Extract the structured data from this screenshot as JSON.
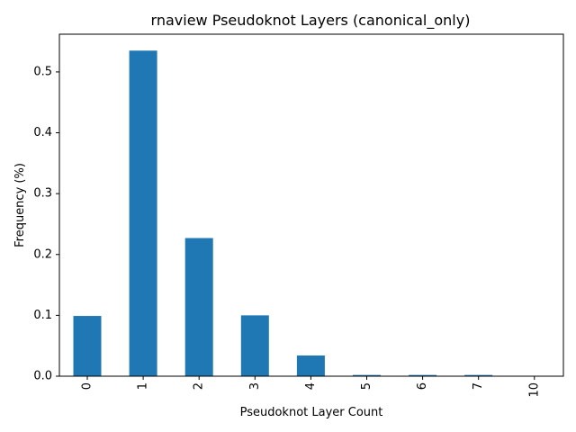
{
  "chart_data": {
    "type": "bar",
    "title": "rnaview Pseudoknot Layers (canonical_only)",
    "xlabel": "Pseudoknot Layer Count",
    "ylabel": "Frequency (%)",
    "categories": [
      "0",
      "1",
      "2",
      "3",
      "4",
      "5",
      "6",
      "7",
      "10"
    ],
    "values": [
      0.099,
      0.535,
      0.227,
      0.1,
      0.034,
      0.002,
      0.002,
      0.002,
      0.0005
    ],
    "ylim": [
      0,
      0.562
    ],
    "yticks": [
      0.0,
      0.1,
      0.2,
      0.3,
      0.4,
      0.5
    ],
    "ytick_labels": [
      "0.0",
      "0.1",
      "0.2",
      "0.3",
      "0.4",
      "0.5"
    ],
    "bar_color": "#1f77b4",
    "grid": false,
    "legend": "none"
  }
}
